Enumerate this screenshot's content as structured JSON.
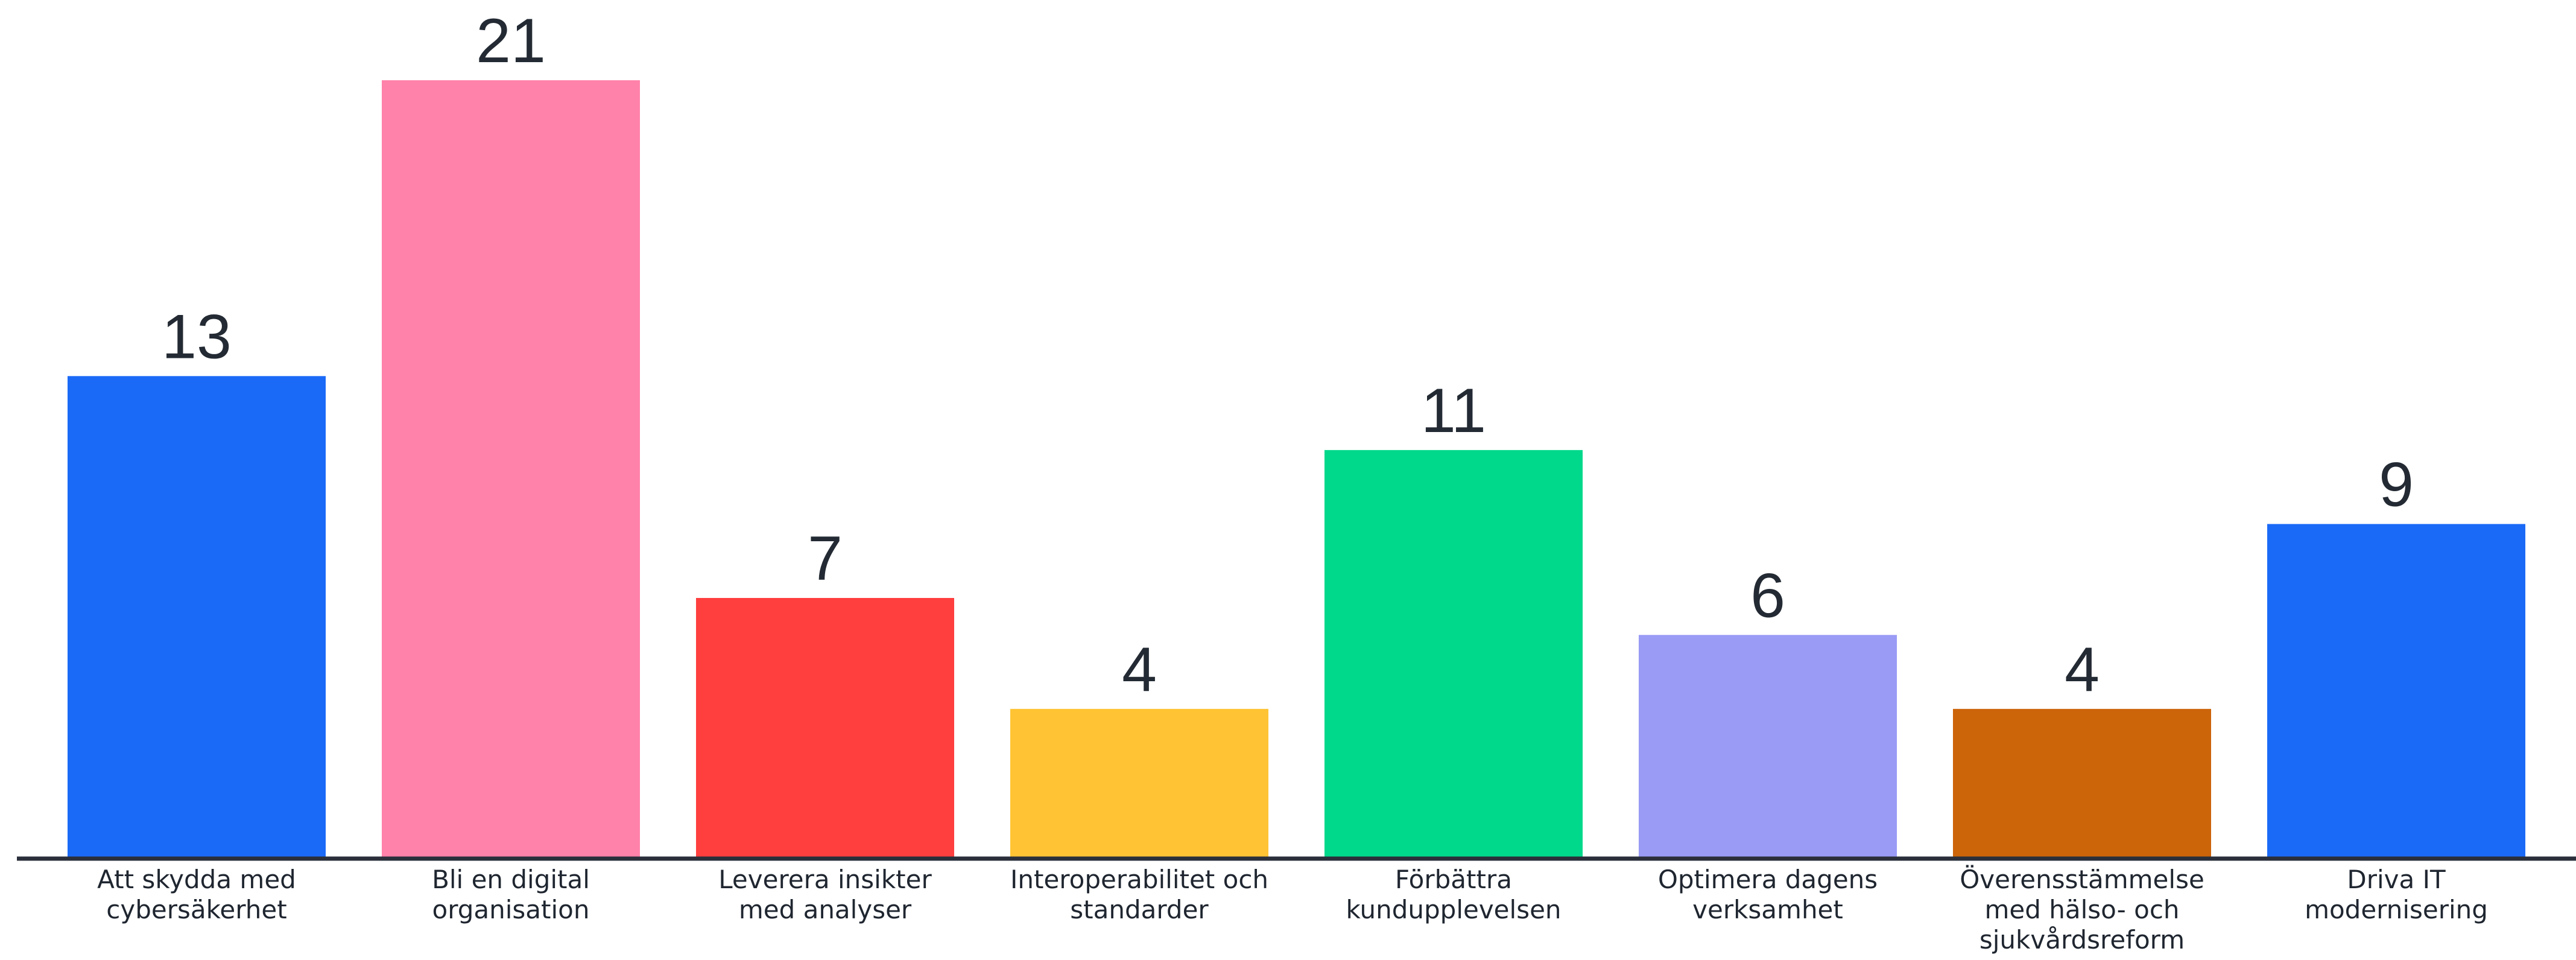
{
  "chart_data": {
    "type": "bar",
    "categories": [
      [
        "Att skydda med",
        "cybersäkerhet"
      ],
      [
        "Bli en digital",
        "organisation"
      ],
      [
        "Leverera insikter",
        "med analyser"
      ],
      [
        "Interoperabilitet och",
        "standarder"
      ],
      [
        "Förbättra",
        "kundupplevelsen"
      ],
      [
        "Optimera dagens",
        "verksamhet"
      ],
      [
        "Överensstämmelse",
        "med hälso- och",
        "sjukvårdsreform"
      ],
      [
        "Driva IT",
        "modernisering"
      ]
    ],
    "values": [
      13,
      21,
      7,
      4,
      11,
      6,
      4,
      9
    ],
    "colors": [
      "#1b6af7",
      "#ff82aa",
      "#ff3e3e",
      "#ffc333",
      "#00d98b",
      "#999bf5",
      "#cc640a",
      "#1b6af7"
    ],
    "axis_color": "#2a2f3a",
    "ylim": [
      0,
      21
    ],
    "title": "",
    "xlabel": "",
    "ylabel": "",
    "grid": false,
    "legend": "none"
  }
}
